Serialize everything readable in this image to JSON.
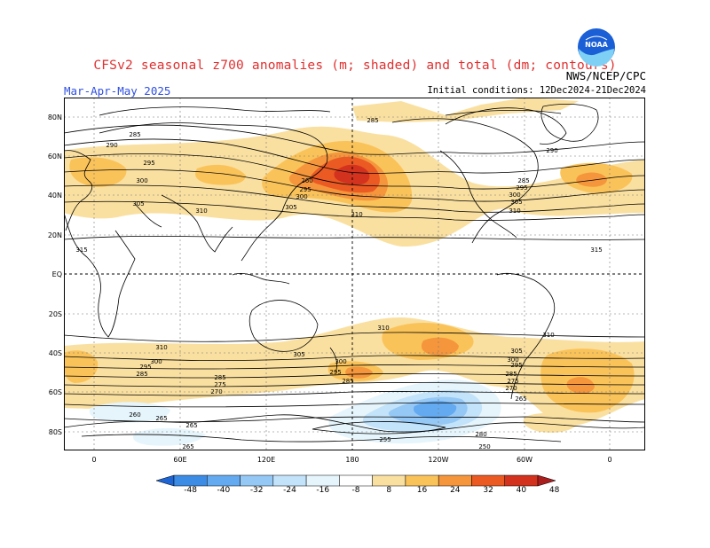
{
  "header": {
    "title": "CFSv2 seasonal z700 anomalies (m; shaded) and total (dm; contours)",
    "period": "Mar-Apr-May 2025",
    "agency": "NWS/NCEP/CPC",
    "initial_conditions": "Initial conditions: 12Dec2024-21Dec2024",
    "logo_text": "NOAA"
  },
  "axes": {
    "latitude_labels": [
      "80N",
      "60N",
      "40N",
      "20N",
      "EQ",
      "20S",
      "40S",
      "60S",
      "80S"
    ],
    "longitude_labels": [
      "0",
      "60E",
      "120E",
      "180",
      "120W",
      "60W",
      "0"
    ]
  },
  "contour_labels": [
    "285",
    "290",
    "295",
    "300",
    "305",
    "310",
    "315",
    "260",
    "265",
    "270",
    "275",
    "280",
    "250",
    "255"
  ],
  "colorbar": {
    "labels": [
      "-48",
      "-40",
      "-32",
      "-24",
      "-16",
      "-8",
      "8",
      "16",
      "24",
      "32",
      "40",
      "48"
    ],
    "colors": [
      "#1e64d2",
      "#3c8ce6",
      "#64aaf0",
      "#96c8f5",
      "#c3e3fa",
      "#e6f5fc",
      "#ffffff",
      "#fae0a0",
      "#fac35a",
      "#f5963c",
      "#eb5a23",
      "#d2321e",
      "#aa1e1e"
    ]
  },
  "colors": {
    "title": "#e03030",
    "period": "#3050e0"
  }
}
